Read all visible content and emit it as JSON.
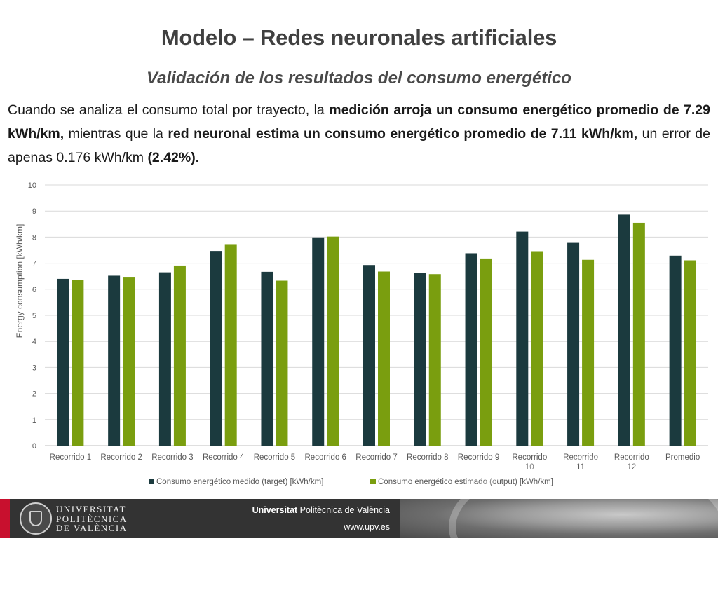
{
  "slide": {
    "title": "Modelo – Redes neuronales artificiales",
    "subtitle": "Validación de los resultados del consumo energético",
    "paragraph": [
      {
        "text": "Cuando se analiza el consumo total por trayecto, la ",
        "bold": false
      },
      {
        "text": "medición arroja un consumo energético promedio de 7.29 kWh/km,",
        "bold": true
      },
      {
        "text": " mientras que la ",
        "bold": false
      },
      {
        "text": "red neuronal estima un consumo energético promedio de 7.11 kWh/km,",
        "bold": true
      },
      {
        "text": " un error de apenas 0.176 kWh/km ",
        "bold": false
      },
      {
        "text": "(2.42%).",
        "bold": true
      }
    ]
  },
  "chart_data": {
    "type": "bar",
    "categories": [
      "Recorrido 1",
      "Recorrido 2",
      "Recorrido 3",
      "Recorrido 4",
      "Recorrido 5",
      "Recorrido 6",
      "Recorrido 7",
      "Recorrido 8",
      "Recorrido 9",
      "Recorrido 10",
      "Recorrido 11",
      "Recorrido 12",
      "Promedio"
    ],
    "series": [
      {
        "name": "Consumo energético medido (target) [kWh/km]",
        "color": "#1b3a3e",
        "values": [
          6.4,
          6.52,
          6.65,
          7.47,
          6.67,
          7.99,
          6.93,
          6.63,
          7.38,
          8.21,
          7.78,
          8.86,
          7.29
        ]
      },
      {
        "name": "Consumo energético estimado (output) [kWh/km]",
        "color": "#7a9e0f",
        "values": [
          6.37,
          6.45,
          6.91,
          7.73,
          6.33,
          8.02,
          6.68,
          6.58,
          7.18,
          7.46,
          7.13,
          8.55,
          7.11
        ]
      }
    ],
    "ylabel": "Energy consumption [kWh/km]",
    "xlabel": "",
    "ylim": [
      0,
      10
    ],
    "yticks": [
      0,
      1,
      2,
      3,
      4,
      5,
      6,
      7,
      8,
      9,
      10
    ],
    "grid": true,
    "legend": "bottom"
  },
  "footer": {
    "university_lines": [
      "UNIVERSITAT",
      "POLITÈCNICA",
      "DE VALÈNCIA"
    ],
    "institution_bold": "Universitat",
    "institution_rest": " Politècnica de València",
    "website": "www.upv.es"
  }
}
